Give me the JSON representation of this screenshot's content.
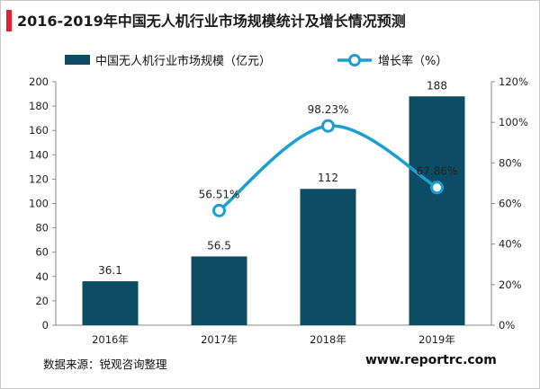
{
  "title": "2016-2019年中国无人机行业市场规模统计及增长情况预测",
  "source": "数据来源：锐观咨询整理",
  "website": "www.reportrc.com",
  "colors": {
    "bar": "#0c4d63",
    "line": "#1b9fd0",
    "accent": "#e8202a"
  },
  "chart_data": {
    "type": "bar",
    "categories": [
      "2016年",
      "2017年",
      "2018年",
      "2019年"
    ],
    "series": [
      {
        "name": "中国无人机行业市场规模（亿元）",
        "type": "bar",
        "axis": "left",
        "values": [
          36.1,
          56.5,
          112,
          188
        ],
        "labels": [
          "36.1",
          "56.5",
          "112",
          "188"
        ]
      },
      {
        "name": "增长率（%）",
        "type": "line",
        "axis": "right",
        "values": [
          null,
          56.51,
          98.23,
          67.86
        ],
        "labels": [
          "",
          "56.51%",
          "98.23%",
          "67.86%"
        ]
      }
    ],
    "y_left": {
      "range": [
        0,
        200
      ],
      "ticks": [
        "0",
        "20",
        "40",
        "60",
        "80",
        "100",
        "120",
        "140",
        "160",
        "180",
        "200"
      ]
    },
    "y_right": {
      "range": [
        0,
        120
      ],
      "ticks": [
        "0%",
        "20%",
        "40%",
        "60%",
        "80%",
        "100%",
        "120%"
      ]
    },
    "grid": false,
    "legend_position": "top"
  }
}
